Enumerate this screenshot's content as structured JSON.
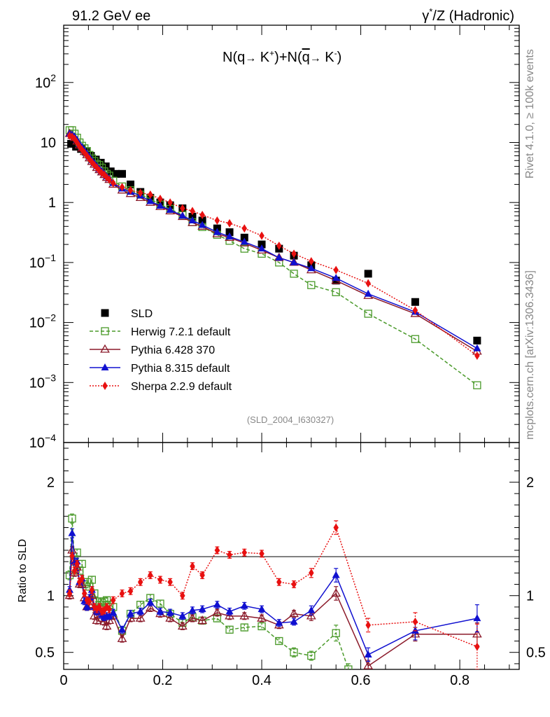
{
  "header": {
    "left": "91.2 GeV ee",
    "right_gamma": "γ",
    "right_star": "*",
    "right_rest": "/Z (Hadronic)"
  },
  "side_text": {
    "rivet": "Rivet 4.1.0, ≥ 100k events",
    "mcplots": "mcplots.cern.ch [arXiv:1306.3436]"
  },
  "observable": {
    "n1": "N(q",
    "arrow": "→",
    "k1": " K",
    "plus1": "+",
    "mid": ")+N(",
    "qbar": "q",
    "k2": " K",
    "minus": "-",
    "close": ")"
  },
  "analysis_id": "(SLD_2004_I630327)",
  "chart_data": {
    "type": "scatter",
    "title": "N(q → K+)+N(q̄ → K-)",
    "xlabel": "",
    "ylabel_main": "",
    "ylabel_ratio": "Ratio to SLD",
    "xlim": [
      0,
      0.92
    ],
    "ylim_main": [
      0.0001,
      900
    ],
    "ylim_ratio": [
      0.35,
      2.35
    ],
    "x_ticks": [
      "0",
      "0.2",
      "0.4",
      "0.6",
      "0.8"
    ],
    "y_ticks_main": [
      "10^-4",
      "10^-3",
      "10^-2",
      "10^-1",
      "1",
      "10",
      "10^2"
    ],
    "y_ticks_ratio": [
      "0.5",
      "1",
      "2"
    ],
    "ratio_reference": 1,
    "legend_position": "lower-left",
    "series": [
      {
        "name": "SLD",
        "color": "#000000",
        "marker": "filled-square",
        "line": "none",
        "x": [
          0.015,
          0.025,
          0.035,
          0.045,
          0.055,
          0.065,
          0.075,
          0.085,
          0.095,
          0.105,
          0.118,
          0.135,
          0.155,
          0.175,
          0.195,
          0.215,
          0.24,
          0.26,
          0.28,
          0.31,
          0.335,
          0.365,
          0.4,
          0.435,
          0.465,
          0.5,
          0.55,
          0.615,
          0.71,
          0.835
        ],
        "y": [
          9.5,
          8.5,
          7.8,
          7.0,
          6.0,
          5.2,
          4.6,
          4.0,
          3.3,
          3.0,
          3.0,
          2.0,
          1.5,
          1.2,
          1.0,
          0.9,
          0.8,
          0.58,
          0.5,
          0.37,
          0.32,
          0.26,
          0.2,
          0.17,
          0.13,
          0.09,
          0.05,
          0.065,
          0.022,
          0.005
        ]
      },
      {
        "name": "Herwig 7.2.1 default",
        "color": "#4a9a2a",
        "marker": "open-square",
        "line": "dashed",
        "x": [
          0.012,
          0.017,
          0.022,
          0.027,
          0.032,
          0.037,
          0.042,
          0.047,
          0.052,
          0.057,
          0.062,
          0.067,
          0.072,
          0.077,
          0.082,
          0.087,
          0.092,
          0.1,
          0.118,
          0.135,
          0.155,
          0.175,
          0.195,
          0.215,
          0.24,
          0.26,
          0.28,
          0.31,
          0.335,
          0.365,
          0.4,
          0.435,
          0.465,
          0.5,
          0.55,
          0.615,
          0.71,
          0.835
        ],
        "y": [
          16,
          16,
          14,
          12,
          10,
          8.8,
          8.0,
          7.2,
          6.2,
          5.4,
          4.9,
          4.4,
          4.2,
          3.8,
          3.3,
          3.0,
          2.8,
          2.3,
          1.85,
          1.6,
          1.35,
          1.15,
          0.92,
          0.78,
          0.62,
          0.47,
          0.39,
          0.29,
          0.23,
          0.17,
          0.14,
          0.1,
          0.065,
          0.042,
          0.032,
          0.014,
          0.0053,
          0.0009
        ]
      },
      {
        "name": "Pythia 6.428 370",
        "color": "#8b1a2a",
        "marker": "open-triangle",
        "line": "solid",
        "x": [
          0.012,
          0.017,
          0.022,
          0.027,
          0.032,
          0.037,
          0.042,
          0.047,
          0.052,
          0.057,
          0.062,
          0.067,
          0.072,
          0.077,
          0.082,
          0.087,
          0.092,
          0.1,
          0.118,
          0.135,
          0.155,
          0.175,
          0.195,
          0.215,
          0.24,
          0.26,
          0.28,
          0.31,
          0.335,
          0.365,
          0.4,
          0.435,
          0.465,
          0.5,
          0.55,
          0.615,
          0.71,
          0.835
        ],
        "y": [
          14,
          13,
          12,
          10.5,
          9.0,
          8.0,
          7.0,
          6.2,
          5.5,
          4.8,
          4.3,
          3.8,
          3.5,
          3.2,
          2.9,
          2.6,
          2.4,
          2.0,
          1.6,
          1.4,
          1.2,
          1.0,
          0.85,
          0.72,
          0.58,
          0.46,
          0.4,
          0.3,
          0.26,
          0.21,
          0.16,
          0.12,
          0.1,
          0.075,
          0.05,
          0.028,
          0.014,
          0.0033
        ]
      },
      {
        "name": "Pythia 8.315 default",
        "color": "#1010d0",
        "marker": "filled-triangle",
        "line": "solid",
        "x": [
          0.012,
          0.017,
          0.022,
          0.027,
          0.032,
          0.037,
          0.042,
          0.047,
          0.052,
          0.057,
          0.062,
          0.067,
          0.072,
          0.077,
          0.082,
          0.087,
          0.092,
          0.1,
          0.118,
          0.135,
          0.155,
          0.175,
          0.195,
          0.215,
          0.24,
          0.26,
          0.28,
          0.31,
          0.335,
          0.365,
          0.4,
          0.435,
          0.465,
          0.5,
          0.55,
          0.615,
          0.71,
          0.835
        ],
        "y": [
          14,
          13.5,
          12.5,
          11,
          9.4,
          8.4,
          7.4,
          6.5,
          5.7,
          5.0,
          4.5,
          4.0,
          3.6,
          3.3,
          3.0,
          2.7,
          2.5,
          2.1,
          1.7,
          1.5,
          1.3,
          1.05,
          0.88,
          0.75,
          0.6,
          0.5,
          0.42,
          0.32,
          0.27,
          0.22,
          0.17,
          0.12,
          0.1,
          0.08,
          0.055,
          0.03,
          0.015,
          0.0037
        ]
      },
      {
        "name": "Sherpa 2.2.9 default",
        "color": "#e81010",
        "marker": "filled-diamond",
        "line": "dotted",
        "x": [
          0.012,
          0.017,
          0.022,
          0.027,
          0.032,
          0.037,
          0.042,
          0.047,
          0.052,
          0.057,
          0.062,
          0.067,
          0.072,
          0.077,
          0.082,
          0.087,
          0.092,
          0.1,
          0.118,
          0.135,
          0.155,
          0.175,
          0.195,
          0.215,
          0.24,
          0.26,
          0.28,
          0.31,
          0.335,
          0.365,
          0.4,
          0.435,
          0.465,
          0.5,
          0.55,
          0.615,
          0.71,
          0.835
        ],
        "y": [
          13,
          12.5,
          11.5,
          10,
          8.6,
          7.6,
          6.8,
          6.0,
          5.3,
          4.7,
          4.2,
          3.8,
          3.4,
          3.1,
          2.9,
          2.6,
          2.4,
          2.1,
          1.8,
          1.6,
          1.45,
          1.35,
          1.15,
          1.0,
          0.8,
          0.72,
          0.62,
          0.5,
          0.45,
          0.37,
          0.28,
          0.19,
          0.14,
          0.105,
          0.075,
          0.045,
          0.016,
          0.0028
        ]
      }
    ],
    "ratios": [
      {
        "name": "Herwig 7.2.1 default",
        "x": [
          0.012,
          0.017,
          0.022,
          0.027,
          0.032,
          0.037,
          0.042,
          0.047,
          0.052,
          0.057,
          0.062,
          0.067,
          0.072,
          0.077,
          0.082,
          0.087,
          0.092,
          0.1,
          0.118,
          0.135,
          0.155,
          0.175,
          0.195,
          0.215,
          0.24,
          0.26,
          0.28,
          0.31,
          0.335,
          0.365,
          0.4,
          0.435,
          0.465,
          0.5,
          0.55,
          0.575
        ],
        "y": [
          1.18,
          1.68,
          1.3,
          1.38,
          1.22,
          1.28,
          1.1,
          1.12,
          1.08,
          1.14,
          1.02,
          0.95,
          0.92,
          0.94,
          0.95,
          0.96,
          0.92,
          0.9,
          0.69,
          0.84,
          0.92,
          0.98,
          0.93,
          0.84,
          0.76,
          0.81,
          0.78,
          0.8,
          0.7,
          0.72,
          0.73,
          0.6,
          0.5,
          0.47,
          0.67,
          0.35
        ],
        "err": [
          0.04,
          0.04,
          0.03,
          0.03,
          0.03,
          0.03,
          0.03,
          0.03,
          0.03,
          0.03,
          0.03,
          0.03,
          0.03,
          0.03,
          0.03,
          0.03,
          0.03,
          0.03,
          0.03,
          0.03,
          0.03,
          0.03,
          0.03,
          0.03,
          0.03,
          0.03,
          0.03,
          0.03,
          0.03,
          0.03,
          0.03,
          0.03,
          0.04,
          0.04,
          0.07,
          0.05
        ]
      },
      {
        "name": "Pythia 6.428 370",
        "x": [
          0.012,
          0.017,
          0.022,
          0.027,
          0.032,
          0.037,
          0.042,
          0.047,
          0.052,
          0.057,
          0.062,
          0.067,
          0.072,
          0.077,
          0.082,
          0.087,
          0.092,
          0.1,
          0.118,
          0.135,
          0.155,
          0.175,
          0.195,
          0.215,
          0.24,
          0.26,
          0.28,
          0.31,
          0.335,
          0.365,
          0.4,
          0.435,
          0.465,
          0.5,
          0.55,
          0.615,
          0.71,
          0.835
        ],
        "y": [
          1.0,
          1.4,
          1.2,
          1.25,
          1.1,
          1.1,
          0.98,
          0.9,
          0.92,
          1.0,
          0.82,
          0.78,
          0.86,
          0.8,
          0.77,
          0.73,
          0.78,
          0.82,
          0.62,
          0.8,
          0.8,
          0.89,
          0.84,
          0.8,
          0.73,
          0.8,
          0.78,
          0.85,
          0.82,
          0.82,
          0.8,
          0.74,
          0.84,
          0.82,
          1.02,
          0.38,
          0.66,
          0.66
        ],
        "err": [
          0.03,
          0.03,
          0.03,
          0.03,
          0.03,
          0.03,
          0.03,
          0.03,
          0.03,
          0.03,
          0.03,
          0.03,
          0.03,
          0.03,
          0.03,
          0.03,
          0.03,
          0.03,
          0.03,
          0.03,
          0.03,
          0.03,
          0.03,
          0.03,
          0.03,
          0.03,
          0.03,
          0.03,
          0.03,
          0.03,
          0.03,
          0.03,
          0.03,
          0.04,
          0.06,
          0.05,
          0.06,
          0.1
        ]
      },
      {
        "name": "Pythia 8.315 default",
        "x": [
          0.012,
          0.017,
          0.022,
          0.027,
          0.032,
          0.037,
          0.042,
          0.047,
          0.052,
          0.057,
          0.062,
          0.067,
          0.072,
          0.077,
          0.082,
          0.087,
          0.092,
          0.1,
          0.118,
          0.135,
          0.155,
          0.175,
          0.195,
          0.215,
          0.24,
          0.26,
          0.28,
          0.31,
          0.335,
          0.365,
          0.4,
          0.435,
          0.465,
          0.5,
          0.55,
          0.615,
          0.71,
          0.835
        ],
        "y": [
          1.05,
          1.55,
          1.3,
          1.3,
          1.12,
          1.15,
          0.95,
          0.9,
          0.98,
          1.05,
          0.9,
          0.86,
          0.88,
          0.83,
          0.81,
          0.82,
          0.82,
          0.85,
          0.7,
          0.84,
          0.86,
          0.94,
          0.86,
          0.85,
          0.82,
          0.87,
          0.88,
          0.92,
          0.86,
          0.91,
          0.88,
          0.76,
          0.77,
          0.87,
          1.18,
          0.48,
          0.69,
          0.8
        ],
        "err": [
          0.03,
          0.04,
          0.03,
          0.03,
          0.03,
          0.03,
          0.03,
          0.03,
          0.03,
          0.03,
          0.03,
          0.03,
          0.03,
          0.03,
          0.03,
          0.03,
          0.03,
          0.03,
          0.03,
          0.03,
          0.03,
          0.03,
          0.03,
          0.03,
          0.03,
          0.03,
          0.03,
          0.03,
          0.03,
          0.03,
          0.03,
          0.03,
          0.03,
          0.04,
          0.06,
          0.06,
          0.08,
          0.12
        ]
      },
      {
        "name": "Sherpa 2.2.9 default",
        "x": [
          0.012,
          0.017,
          0.022,
          0.027,
          0.032,
          0.037,
          0.042,
          0.047,
          0.052,
          0.057,
          0.062,
          0.067,
          0.072,
          0.077,
          0.082,
          0.087,
          0.092,
          0.1,
          0.118,
          0.135,
          0.155,
          0.175,
          0.195,
          0.215,
          0.24,
          0.26,
          0.28,
          0.31,
          0.335,
          0.365,
          0.4,
          0.435,
          0.465,
          0.5,
          0.55,
          0.615,
          0.71,
          0.835
        ],
        "y": [
          1.02,
          1.35,
          1.22,
          1.28,
          1.12,
          1.15,
          1.02,
          0.96,
          0.95,
          1.05,
          0.9,
          0.88,
          0.9,
          0.86,
          0.87,
          0.9,
          0.88,
          0.96,
          1.02,
          1.04,
          1.12,
          1.18,
          1.14,
          1.12,
          1.0,
          1.26,
          1.18,
          1.4,
          1.36,
          1.38,
          1.37,
          1.12,
          1.1,
          1.2,
          1.6,
          0.74,
          0.77,
          0.55
        ],
        "err": [
          0.03,
          0.03,
          0.03,
          0.03,
          0.03,
          0.03,
          0.03,
          0.03,
          0.03,
          0.03,
          0.03,
          0.03,
          0.03,
          0.03,
          0.03,
          0.03,
          0.03,
          0.03,
          0.03,
          0.03,
          0.03,
          0.03,
          0.03,
          0.03,
          0.03,
          0.03,
          0.03,
          0.03,
          0.03,
          0.03,
          0.03,
          0.03,
          0.03,
          0.04,
          0.06,
          0.06,
          0.08,
          0.2
        ]
      }
    ]
  }
}
